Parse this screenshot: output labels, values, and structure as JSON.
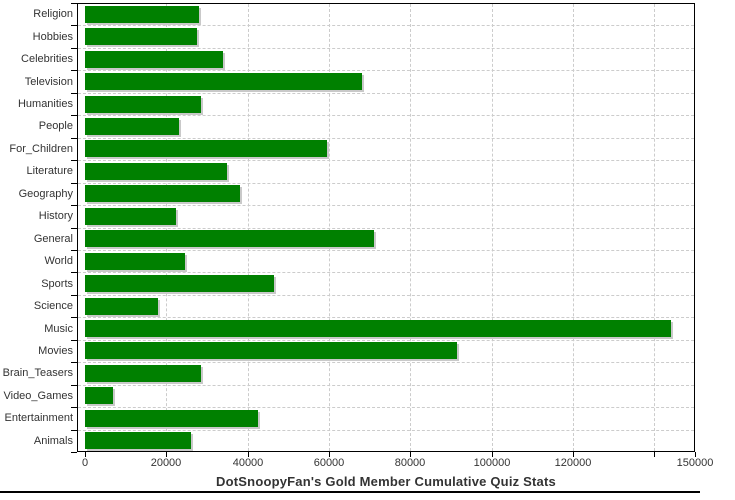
{
  "title": "DotSnoopyFan's Gold Member Cumulative Quiz Stats",
  "chart_data": {
    "type": "bar",
    "orientation": "horizontal",
    "title": "DotSnoopyFan's Gold Member Cumulative Quiz Stats",
    "categories": [
      "Religion",
      "Hobbies",
      "Celebrities",
      "Television",
      "Humanities",
      "People",
      "For_Children",
      "Literature",
      "Geography",
      "History",
      "General",
      "World",
      "Sports",
      "Science",
      "Music",
      "Movies",
      "Brain_Teasers",
      "Video_Games",
      "Entertainment",
      "Animals"
    ],
    "values": [
      28000,
      27500,
      34000,
      68000,
      28500,
      23000,
      59500,
      35000,
      38000,
      22500,
      71000,
      24500,
      46500,
      18000,
      144000,
      91500,
      28500,
      7000,
      42500,
      26000
    ],
    "xlabel": "",
    "ylabel": "",
    "xlim": [
      0,
      150000
    ],
    "x_ticks": [
      {
        "value": 0,
        "label": "0"
      },
      {
        "value": 20000,
        "label": "20000"
      },
      {
        "value": 40000,
        "label": "40000"
      },
      {
        "value": 60000,
        "label": "60000"
      },
      {
        "value": 80000,
        "label": "80000"
      },
      {
        "value": 100000,
        "label": "100000"
      },
      {
        "value": 120000,
        "label": "120000"
      },
      {
        "value": 140000,
        "label": ""
      },
      {
        "value": 150000,
        "label": "150000"
      }
    ],
    "grid": "dashed",
    "legend": "none",
    "colors": {
      "bar": "#008000",
      "bar_shadow": "#c9c9c9",
      "grid": "#cccccc",
      "axis": "#000000",
      "text": "#333333",
      "background": "#ffffff"
    }
  }
}
